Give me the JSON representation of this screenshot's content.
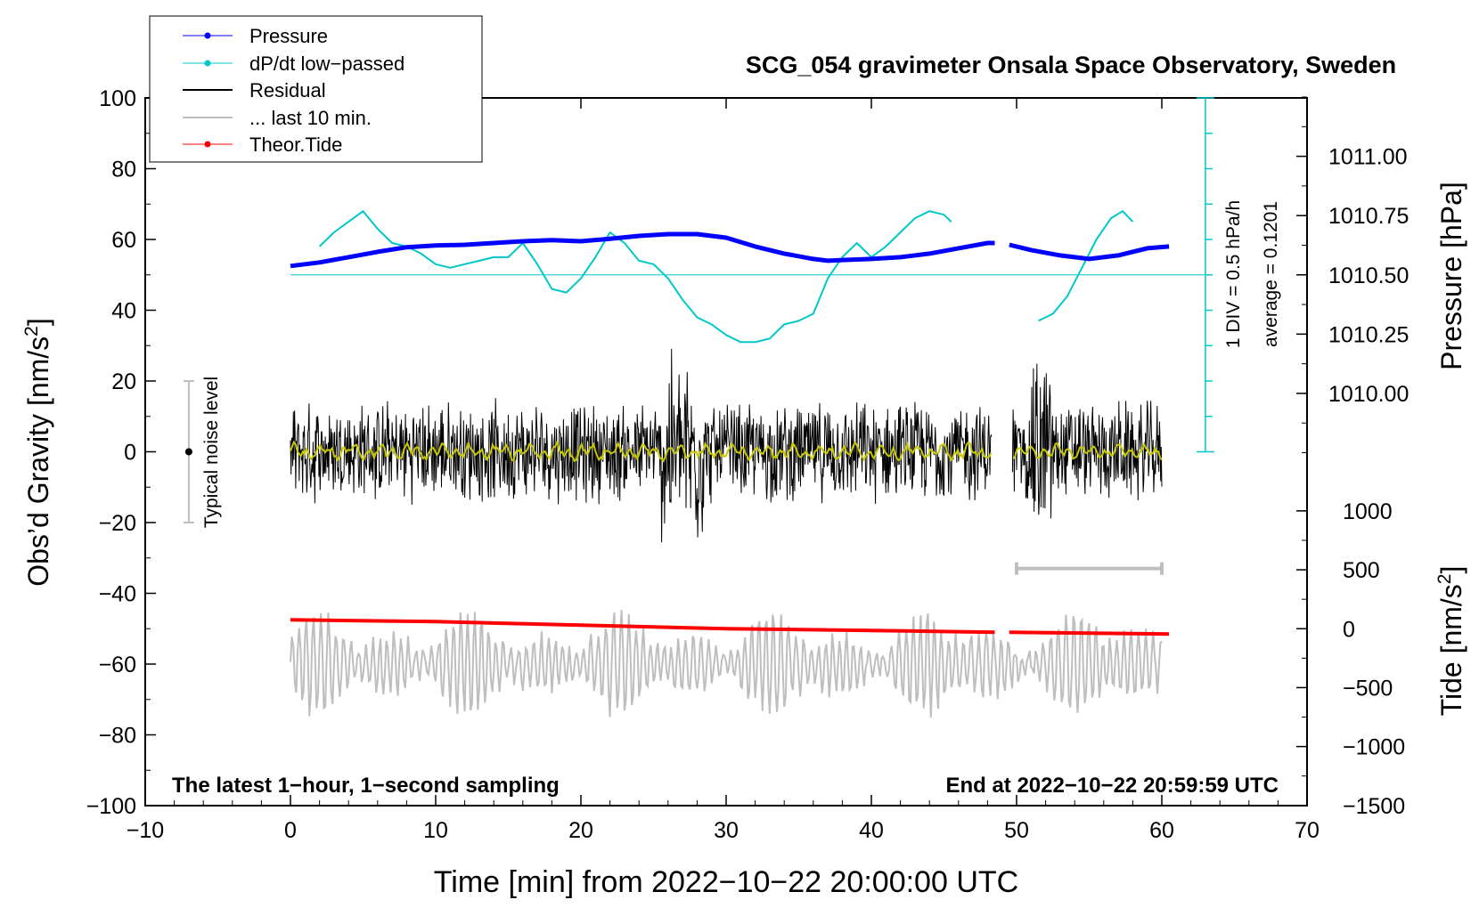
{
  "chart_data": {
    "type": "line",
    "title": "SCG_054 gravimeter Onsala Space Observatory, Sweden",
    "xlabel": "Time [min] from 2022−10−22 20:00:00 UTC",
    "ylabel_left_main": "Obs’d Gravity [nm/s",
    "ylabel_left_sup": "2",
    "ylabel_left_end": "]",
    "ylabel_right_top": "Pressure [hPa]",
    "ylabel_right_bottom_main": "Tide [nm/s",
    "ylabel_right_bottom_sup": "2",
    "ylabel_right_bottom_end": "]",
    "xlim": [
      -10,
      70
    ],
    "ylim": [
      -100,
      100
    ],
    "x_ticks": [
      -10,
      0,
      10,
      20,
      30,
      40,
      50,
      60,
      70
    ],
    "x_tick_labels": [
      "−10",
      "0",
      "10",
      "20",
      "30",
      "40",
      "50",
      "60",
      "70"
    ],
    "y_ticks": [
      -100,
      -80,
      -60,
      -40,
      -20,
      0,
      20,
      40,
      60,
      80,
      100
    ],
    "y_tick_labels": [
      "−100",
      "−80",
      "−60",
      "−40",
      "−20",
      "0",
      "20",
      "40",
      "60",
      "80",
      "100"
    ],
    "pressure_axis": {
      "ticks": [
        1010.0,
        1010.25,
        1010.5,
        1010.75,
        1011.0
      ],
      "tick_labels": [
        "1010.00",
        "1010.25",
        "1010.50",
        "1010.75",
        "1011.00"
      ],
      "y_at_1010_50": 50,
      "gravity_units_per_hPa": 67
    },
    "tide_axis": {
      "ticks": [
        -1500,
        -1000,
        -500,
        0,
        500,
        1000
      ],
      "tick_labels": [
        "−1500",
        "−1000",
        "−500",
        "0",
        "500",
        "1000"
      ],
      "gravity_units_per_1000": 33.3,
      "y_at_0": -50
    },
    "legend": {
      "position": "top-left",
      "items": [
        {
          "label": "Pressure",
          "color": "#0000ff",
          "marker": true
        },
        {
          "label": "dP/dt low−passed",
          "color": "#00c8c8",
          "marker": true
        },
        {
          "label": "Residual",
          "color": "#000000",
          "marker": false
        },
        {
          "label": "... last 10 min.",
          "color": "#bebebe",
          "marker": false
        },
        {
          "label": "Theor.Tide",
          "color": "#ff0000",
          "marker": true
        }
      ]
    },
    "annotations": {
      "bottom_left": "The latest 1−hour, 1−second sampling",
      "bottom_right": "End at 2022−10−22 20:59:59 UTC",
      "noise_label": "Typical noise level",
      "dpdt_scale": "1 DIV = 0.5 hPa/h",
      "dpdt_average": "average = 0.1201"
    },
    "noise_bar": {
      "x": -7,
      "y_center": 0,
      "y_min": -20,
      "y_max": 20
    },
    "gray_scale_bar": {
      "x_start": 50,
      "x_end": 60,
      "y": -33
    },
    "dpdt_axis": {
      "x": 63,
      "y_bottom": 0,
      "y_top": 100,
      "baseline_y": 50,
      "div_ticks": [
        10,
        20,
        30,
        40,
        50,
        60,
        70,
        80,
        90
      ]
    },
    "series": [
      {
        "name": "Pressure",
        "color": "#0000ff",
        "x": [
          0,
          2,
          4,
          6,
          8,
          10,
          12,
          14,
          16,
          18,
          20,
          22,
          24,
          26,
          28,
          30,
          32,
          34,
          36,
          37,
          38,
          40,
          42,
          44,
          46,
          48,
          48.5,
          null,
          49.5,
          51,
          53,
          55,
          57,
          59,
          60.5
        ],
        "y": [
          52.5,
          53.5,
          55,
          56.5,
          57.8,
          58.3,
          58.5,
          59,
          59.5,
          59.8,
          59.5,
          60.2,
          61,
          61.5,
          61.5,
          60.5,
          58,
          56,
          54.5,
          54,
          54.2,
          54.5,
          55,
          56,
          57.5,
          59,
          59,
          null,
          58.5,
          57,
          55.5,
          54.5,
          55.5,
          57.5,
          58
        ]
      },
      {
        "name": "dP/dt low−passed",
        "color": "#00c8c8",
        "x": [
          2,
          3,
          4,
          5,
          6,
          7,
          8,
          9,
          10,
          11,
          12,
          13,
          14,
          15,
          16,
          17,
          18,
          19,
          20,
          21,
          22,
          23,
          24,
          25,
          26,
          27,
          28,
          29,
          30,
          31,
          32,
          33,
          34,
          35,
          36,
          37,
          38,
          39,
          40,
          41,
          42,
          43,
          44,
          45,
          45.5,
          null,
          51.5,
          52.5,
          53.5,
          54.5,
          55.5,
          56.5,
          57.3,
          58
        ],
        "y": [
          58,
          62,
          65,
          68,
          63,
          59,
          58,
          56,
          53,
          52,
          53,
          54,
          55,
          55,
          59,
          53,
          46,
          45,
          49,
          55,
          62,
          59,
          54,
          53,
          49,
          43,
          38,
          36,
          33,
          31,
          31,
          32,
          36,
          37,
          39,
          49,
          55,
          59,
          55,
          58,
          62,
          66,
          68,
          67,
          65,
          null,
          37,
          39,
          44,
          52,
          60,
          66,
          68,
          65
        ]
      },
      {
        "name": "Residual",
        "color": "#000000",
        "x_range": [
          0,
          60
        ],
        "gap": [
          48.3,
          49.7
        ],
        "amplitude": 12,
        "range": [
          -30,
          40
        ]
      },
      {
        "name": "Residual smoothed",
        "color": "#c8c800",
        "x_range": [
          0,
          60
        ],
        "amplitude": 2
      },
      {
        "name": "... last 10 min.",
        "color": "#bebebe",
        "x_range": [
          0,
          60
        ],
        "center": -60,
        "amplitude": 15
      },
      {
        "name": "Theor.Tide",
        "color": "#ff0000",
        "x": [
          0,
          10,
          20,
          30,
          40,
          48.5,
          null,
          49.5,
          60.5
        ],
        "y": [
          -47.5,
          -48,
          -49,
          -50,
          -50.5,
          -51,
          null,
          -51,
          -51.5
        ]
      }
    ]
  }
}
